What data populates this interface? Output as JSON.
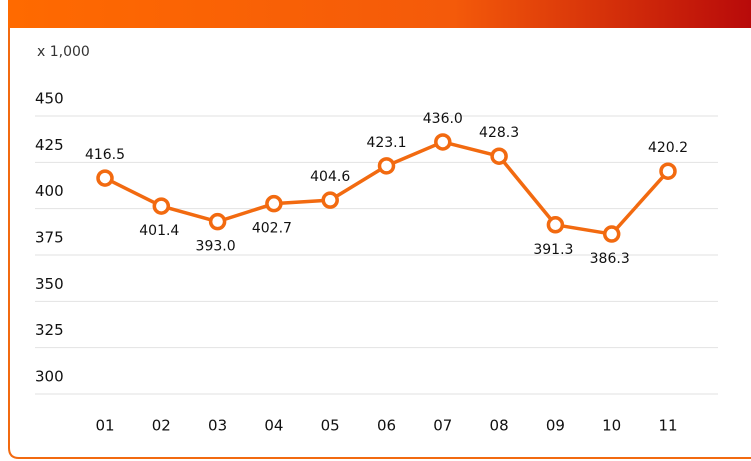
{
  "chart_data": {
    "type": "line",
    "unit_label": "x 1,000",
    "categories": [
      "01",
      "02",
      "03",
      "04",
      "05",
      "06",
      "07",
      "08",
      "09",
      "10",
      "11"
    ],
    "series": [
      {
        "color": "#f26a10",
        "values": [
          416.5,
          401.4,
          393.0,
          402.7,
          404.6,
          423.1,
          436.0,
          428.3,
          391.3,
          386.3,
          420.2
        ],
        "value_labels": [
          "416.5",
          "401.4",
          "393.0",
          "402.7",
          "404.6",
          "423.1",
          "436.0",
          "428.3",
          "391.3",
          "386.3",
          "420.2"
        ]
      }
    ],
    "ylim": [
      300,
      450
    ],
    "yticks": [
      300,
      325,
      350,
      375,
      400,
      425,
      450
    ],
    "grid": true
  }
}
